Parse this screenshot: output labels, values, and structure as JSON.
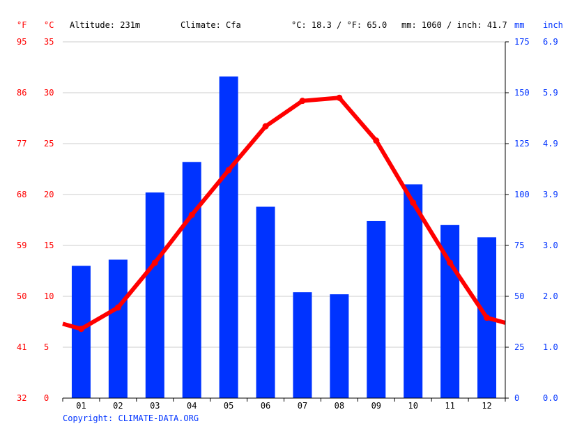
{
  "header": {
    "f_unit": "°F",
    "c_unit": "°C",
    "altitude": "Altitude: 231m",
    "climate": "Climate: Cfa",
    "avg_temp": "°C: 18.3 / °F: 65.0",
    "precip_total": "mm: 1060 / inch: 41.7",
    "mm_unit": "mm",
    "inch_unit": "inch"
  },
  "copyright": "Copyright: CLIMATE-DATA.ORG",
  "colors": {
    "temperature": "#ff0000",
    "precipitation": "#0033ff",
    "grid": "#cccccc"
  },
  "chart_data": {
    "type": "bar",
    "categories": [
      "01",
      "02",
      "03",
      "04",
      "05",
      "06",
      "07",
      "08",
      "09",
      "10",
      "11",
      "12"
    ],
    "series": [
      {
        "values": [
          65,
          68,
          101,
          116,
          158,
          94,
          52,
          51,
          87,
          105,
          85,
          79
        ]
      },
      {
        "values": [
          6.8,
          8.9,
          13.3,
          18.0,
          22.4,
          26.7,
          29.2,
          29.5,
          25.3,
          19.2,
          13.3,
          7.9
        ]
      }
    ],
    "temp_edge_values": [
      7.3,
      7.4
    ],
    "ylim_celsius": [
      0,
      35
    ],
    "ylim_mm": [
      0,
      175
    ],
    "yticks_celsius": [
      "0",
      "5",
      "10",
      "15",
      "20",
      "25",
      "30",
      "35"
    ],
    "yticks_fahrenheit": [
      "32",
      "41",
      "50",
      "59",
      "68",
      "77",
      "86",
      "95"
    ],
    "yticks_mm": [
      "0",
      "25",
      "50",
      "75",
      "100",
      "125",
      "150",
      "175"
    ],
    "yticks_inch": [
      "0.0",
      "1.0",
      "2.0",
      "3.0",
      "3.9",
      "4.9",
      "5.9",
      "6.9"
    ],
    "grid": true
  }
}
